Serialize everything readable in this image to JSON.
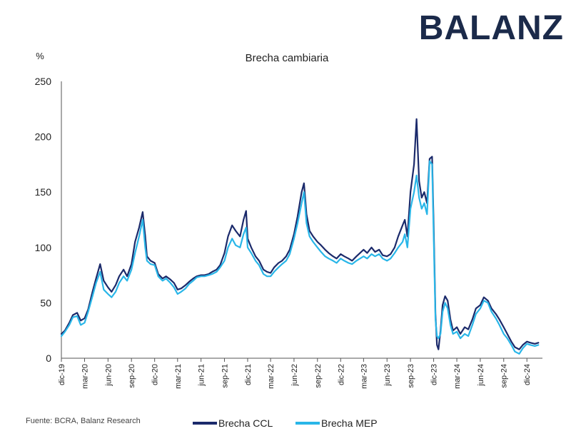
{
  "brand": {
    "logo_text": "BALANZ"
  },
  "chart_data": {
    "type": "line",
    "title": "Brecha cambiaria",
    "ylabel": "%",
    "xlabel": "",
    "ylim": [
      0,
      250
    ],
    "yticks": [
      0,
      50,
      100,
      150,
      200,
      250
    ],
    "xlim": [
      "2019-12-01",
      "2025-01-31"
    ],
    "xtick_labels": [
      "dic-19",
      "mar-20",
      "jun-20",
      "sep-20",
      "dic-20",
      "mar-21",
      "jun-21",
      "sep-21",
      "dic-21",
      "mar-22",
      "jun-22",
      "sep-22",
      "dic-22",
      "mar-23",
      "jun-23",
      "sep-23",
      "dic-23",
      "mar-24",
      "jun-24",
      "sep-24",
      "dic-24"
    ],
    "xtick_dates": [
      "2019-12-01",
      "2020-03-01",
      "2020-06-01",
      "2020-09-01",
      "2020-12-01",
      "2021-03-01",
      "2021-06-01",
      "2021-09-01",
      "2021-12-01",
      "2022-03-01",
      "2022-06-01",
      "2022-09-01",
      "2022-12-01",
      "2023-03-01",
      "2023-06-01",
      "2023-09-01",
      "2023-12-01",
      "2024-03-01",
      "2024-06-01",
      "2024-09-01",
      "2024-12-01"
    ],
    "grid": false,
    "legend_position": "bottom",
    "series": [
      {
        "name": "Brecha CCL",
        "color": "#1b2a6b",
        "points": [
          [
            "2019-12-01",
            22
          ],
          [
            "2019-12-15",
            25
          ],
          [
            "2020-01-01",
            32
          ],
          [
            "2020-01-15",
            39
          ],
          [
            "2020-02-01",
            41
          ],
          [
            "2020-02-15",
            34
          ],
          [
            "2020-03-01",
            36
          ],
          [
            "2020-03-15",
            44
          ],
          [
            "2020-04-01",
            60
          ],
          [
            "2020-04-15",
            72
          ],
          [
            "2020-05-01",
            85
          ],
          [
            "2020-05-15",
            70
          ],
          [
            "2020-06-01",
            64
          ],
          [
            "2020-06-15",
            60
          ],
          [
            "2020-07-01",
            66
          ],
          [
            "2020-07-15",
            74
          ],
          [
            "2020-08-01",
            80
          ],
          [
            "2020-08-15",
            74
          ],
          [
            "2020-09-01",
            85
          ],
          [
            "2020-09-15",
            105
          ],
          [
            "2020-10-01",
            118
          ],
          [
            "2020-10-15",
            132
          ],
          [
            "2020-10-25",
            110
          ],
          [
            "2020-11-01",
            92
          ],
          [
            "2020-11-15",
            88
          ],
          [
            "2020-12-01",
            86
          ],
          [
            "2020-12-15",
            76
          ],
          [
            "2021-01-01",
            72
          ],
          [
            "2021-01-15",
            74
          ],
          [
            "2021-02-01",
            71
          ],
          [
            "2021-02-15",
            68
          ],
          [
            "2021-03-01",
            62
          ],
          [
            "2021-03-15",
            63
          ],
          [
            "2021-04-01",
            66
          ],
          [
            "2021-04-15",
            69
          ],
          [
            "2021-05-01",
            72
          ],
          [
            "2021-05-15",
            74
          ],
          [
            "2021-06-01",
            75
          ],
          [
            "2021-06-15",
            75
          ],
          [
            "2021-07-01",
            76
          ],
          [
            "2021-07-15",
            78
          ],
          [
            "2021-08-01",
            80
          ],
          [
            "2021-08-15",
            84
          ],
          [
            "2021-09-01",
            95
          ],
          [
            "2021-09-15",
            110
          ],
          [
            "2021-10-01",
            120
          ],
          [
            "2021-10-15",
            115
          ],
          [
            "2021-11-01",
            110
          ],
          [
            "2021-11-15",
            125
          ],
          [
            "2021-11-25",
            133
          ],
          [
            "2021-12-01",
            108
          ],
          [
            "2021-12-15",
            100
          ],
          [
            "2022-01-01",
            92
          ],
          [
            "2022-01-15",
            88
          ],
          [
            "2022-02-01",
            80
          ],
          [
            "2022-02-15",
            78
          ],
          [
            "2022-03-01",
            77
          ],
          [
            "2022-03-15",
            82
          ],
          [
            "2022-04-01",
            86
          ],
          [
            "2022-04-15",
            88
          ],
          [
            "2022-05-01",
            92
          ],
          [
            "2022-05-15",
            98
          ],
          [
            "2022-06-01",
            112
          ],
          [
            "2022-06-15",
            128
          ],
          [
            "2022-07-01",
            150
          ],
          [
            "2022-07-10",
            158
          ],
          [
            "2022-07-20",
            130
          ],
          [
            "2022-08-01",
            115
          ],
          [
            "2022-08-15",
            110
          ],
          [
            "2022-09-01",
            105
          ],
          [
            "2022-09-15",
            102
          ],
          [
            "2022-10-01",
            98
          ],
          [
            "2022-10-15",
            95
          ],
          [
            "2022-11-01",
            92
          ],
          [
            "2022-11-15",
            90
          ],
          [
            "2022-12-01",
            94
          ],
          [
            "2022-12-15",
            92
          ],
          [
            "2023-01-01",
            90
          ],
          [
            "2023-01-15",
            88
          ],
          [
            "2023-02-01",
            92
          ],
          [
            "2023-02-15",
            95
          ],
          [
            "2023-03-01",
            98
          ],
          [
            "2023-03-15",
            95
          ],
          [
            "2023-04-01",
            100
          ],
          [
            "2023-04-15",
            96
          ],
          [
            "2023-05-01",
            98
          ],
          [
            "2023-05-15",
            93
          ],
          [
            "2023-06-01",
            92
          ],
          [
            "2023-06-15",
            94
          ],
          [
            "2023-07-01",
            100
          ],
          [
            "2023-07-15",
            110
          ],
          [
            "2023-08-01",
            120
          ],
          [
            "2023-08-10",
            125
          ],
          [
            "2023-08-20",
            110
          ],
          [
            "2023-09-01",
            150
          ],
          [
            "2023-09-15",
            175
          ],
          [
            "2023-09-25",
            216
          ],
          [
            "2023-10-05",
            160
          ],
          [
            "2023-10-15",
            145
          ],
          [
            "2023-10-25",
            150
          ],
          [
            "2023-11-05",
            140
          ],
          [
            "2023-11-15",
            180
          ],
          [
            "2023-11-25",
            182
          ],
          [
            "2023-12-01",
            120
          ],
          [
            "2023-12-08",
            40
          ],
          [
            "2023-12-14",
            12
          ],
          [
            "2023-12-20",
            8
          ],
          [
            "2023-12-28",
            25
          ],
          [
            "2024-01-05",
            48
          ],
          [
            "2024-01-15",
            56
          ],
          [
            "2024-01-25",
            52
          ],
          [
            "2024-02-05",
            35
          ],
          [
            "2024-02-15",
            25
          ],
          [
            "2024-03-01",
            28
          ],
          [
            "2024-03-15",
            22
          ],
          [
            "2024-04-01",
            28
          ],
          [
            "2024-04-15",
            26
          ],
          [
            "2024-05-01",
            35
          ],
          [
            "2024-05-15",
            45
          ],
          [
            "2024-06-01",
            48
          ],
          [
            "2024-06-15",
            55
          ],
          [
            "2024-07-01",
            52
          ],
          [
            "2024-07-15",
            45
          ],
          [
            "2024-08-01",
            40
          ],
          [
            "2024-08-15",
            35
          ],
          [
            "2024-09-01",
            28
          ],
          [
            "2024-09-15",
            22
          ],
          [
            "2024-10-01",
            15
          ],
          [
            "2024-10-15",
            10
          ],
          [
            "2024-11-01",
            8
          ],
          [
            "2024-11-15",
            12
          ],
          [
            "2024-12-01",
            15
          ],
          [
            "2024-12-15",
            14
          ],
          [
            "2025-01-01",
            13
          ],
          [
            "2025-01-15",
            14
          ]
        ]
      },
      {
        "name": "Brecha MEP",
        "color": "#29b6e8",
        "points": [
          [
            "2019-12-01",
            20
          ],
          [
            "2019-12-15",
            24
          ],
          [
            "2020-01-01",
            30
          ],
          [
            "2020-01-15",
            37
          ],
          [
            "2020-02-01",
            38
          ],
          [
            "2020-02-15",
            30
          ],
          [
            "2020-03-01",
            32
          ],
          [
            "2020-03-15",
            42
          ],
          [
            "2020-04-01",
            56
          ],
          [
            "2020-04-15",
            68
          ],
          [
            "2020-05-01",
            78
          ],
          [
            "2020-05-15",
            62
          ],
          [
            "2020-06-01",
            58
          ],
          [
            "2020-06-15",
            55
          ],
          [
            "2020-07-01",
            60
          ],
          [
            "2020-07-15",
            68
          ],
          [
            "2020-08-01",
            74
          ],
          [
            "2020-08-15",
            70
          ],
          [
            "2020-09-01",
            80
          ],
          [
            "2020-09-15",
            95
          ],
          [
            "2020-10-01",
            110
          ],
          [
            "2020-10-15",
            125
          ],
          [
            "2020-10-25",
            100
          ],
          [
            "2020-11-01",
            88
          ],
          [
            "2020-11-15",
            85
          ],
          [
            "2020-12-01",
            84
          ],
          [
            "2020-12-15",
            74
          ],
          [
            "2021-01-01",
            70
          ],
          [
            "2021-01-15",
            72
          ],
          [
            "2021-02-01",
            68
          ],
          [
            "2021-02-15",
            64
          ],
          [
            "2021-03-01",
            58
          ],
          [
            "2021-03-15",
            60
          ],
          [
            "2021-04-01",
            63
          ],
          [
            "2021-04-15",
            67
          ],
          [
            "2021-05-01",
            70
          ],
          [
            "2021-05-15",
            73
          ],
          [
            "2021-06-01",
            74
          ],
          [
            "2021-06-15",
            74
          ],
          [
            "2021-07-01",
            75
          ],
          [
            "2021-07-15",
            76
          ],
          [
            "2021-08-01",
            78
          ],
          [
            "2021-08-15",
            82
          ],
          [
            "2021-09-01",
            88
          ],
          [
            "2021-09-15",
            100
          ],
          [
            "2021-10-01",
            108
          ],
          [
            "2021-10-15",
            102
          ],
          [
            "2021-11-01",
            100
          ],
          [
            "2021-11-15",
            112
          ],
          [
            "2021-11-25",
            118
          ],
          [
            "2021-12-01",
            100
          ],
          [
            "2021-12-15",
            95
          ],
          [
            "2022-01-01",
            88
          ],
          [
            "2022-01-15",
            84
          ],
          [
            "2022-02-01",
            76
          ],
          [
            "2022-02-15",
            74
          ],
          [
            "2022-03-01",
            74
          ],
          [
            "2022-03-15",
            78
          ],
          [
            "2022-04-01",
            82
          ],
          [
            "2022-04-15",
            85
          ],
          [
            "2022-05-01",
            88
          ],
          [
            "2022-05-15",
            94
          ],
          [
            "2022-06-01",
            108
          ],
          [
            "2022-06-15",
            122
          ],
          [
            "2022-07-01",
            140
          ],
          [
            "2022-07-10",
            150
          ],
          [
            "2022-07-20",
            122
          ],
          [
            "2022-08-01",
            110
          ],
          [
            "2022-08-15",
            105
          ],
          [
            "2022-09-01",
            100
          ],
          [
            "2022-09-15",
            96
          ],
          [
            "2022-10-01",
            92
          ],
          [
            "2022-10-15",
            90
          ],
          [
            "2022-11-01",
            88
          ],
          [
            "2022-11-15",
            86
          ],
          [
            "2022-12-01",
            90
          ],
          [
            "2022-12-15",
            88
          ],
          [
            "2023-01-01",
            86
          ],
          [
            "2023-01-15",
            85
          ],
          [
            "2023-02-01",
            88
          ],
          [
            "2023-02-15",
            90
          ],
          [
            "2023-03-01",
            92
          ],
          [
            "2023-03-15",
            90
          ],
          [
            "2023-04-01",
            94
          ],
          [
            "2023-04-15",
            92
          ],
          [
            "2023-05-01",
            94
          ],
          [
            "2023-05-15",
            90
          ],
          [
            "2023-06-01",
            88
          ],
          [
            "2023-06-15",
            90
          ],
          [
            "2023-07-01",
            95
          ],
          [
            "2023-07-15",
            100
          ],
          [
            "2023-08-01",
            105
          ],
          [
            "2023-08-10",
            112
          ],
          [
            "2023-08-20",
            100
          ],
          [
            "2023-09-01",
            135
          ],
          [
            "2023-09-15",
            150
          ],
          [
            "2023-09-25",
            165
          ],
          [
            "2023-10-05",
            145
          ],
          [
            "2023-10-15",
            135
          ],
          [
            "2023-10-25",
            140
          ],
          [
            "2023-11-05",
            130
          ],
          [
            "2023-11-15",
            178
          ],
          [
            "2023-11-25",
            175
          ],
          [
            "2023-12-01",
            110
          ],
          [
            "2023-12-08",
            35
          ],
          [
            "2023-12-14",
            20
          ],
          [
            "2023-12-20",
            18
          ],
          [
            "2023-12-28",
            22
          ],
          [
            "2024-01-05",
            42
          ],
          [
            "2024-01-15",
            50
          ],
          [
            "2024-01-25",
            45
          ],
          [
            "2024-02-05",
            30
          ],
          [
            "2024-02-15",
            22
          ],
          [
            "2024-03-01",
            24
          ],
          [
            "2024-03-15",
            18
          ],
          [
            "2024-04-01",
            22
          ],
          [
            "2024-04-15",
            20
          ],
          [
            "2024-05-01",
            30
          ],
          [
            "2024-05-15",
            40
          ],
          [
            "2024-06-01",
            45
          ],
          [
            "2024-06-15",
            52
          ],
          [
            "2024-07-01",
            50
          ],
          [
            "2024-07-15",
            42
          ],
          [
            "2024-08-01",
            36
          ],
          [
            "2024-08-15",
            30
          ],
          [
            "2024-09-01",
            22
          ],
          [
            "2024-09-15",
            18
          ],
          [
            "2024-10-01",
            12
          ],
          [
            "2024-10-15",
            6
          ],
          [
            "2024-11-01",
            4
          ],
          [
            "2024-11-15",
            9
          ],
          [
            "2024-12-01",
            13
          ],
          [
            "2024-12-15",
            12
          ],
          [
            "2025-01-01",
            11
          ],
          [
            "2025-01-15",
            12
          ]
        ]
      }
    ]
  },
  "footer": {
    "source": "Fuente: BCRA, Balanz Research"
  }
}
